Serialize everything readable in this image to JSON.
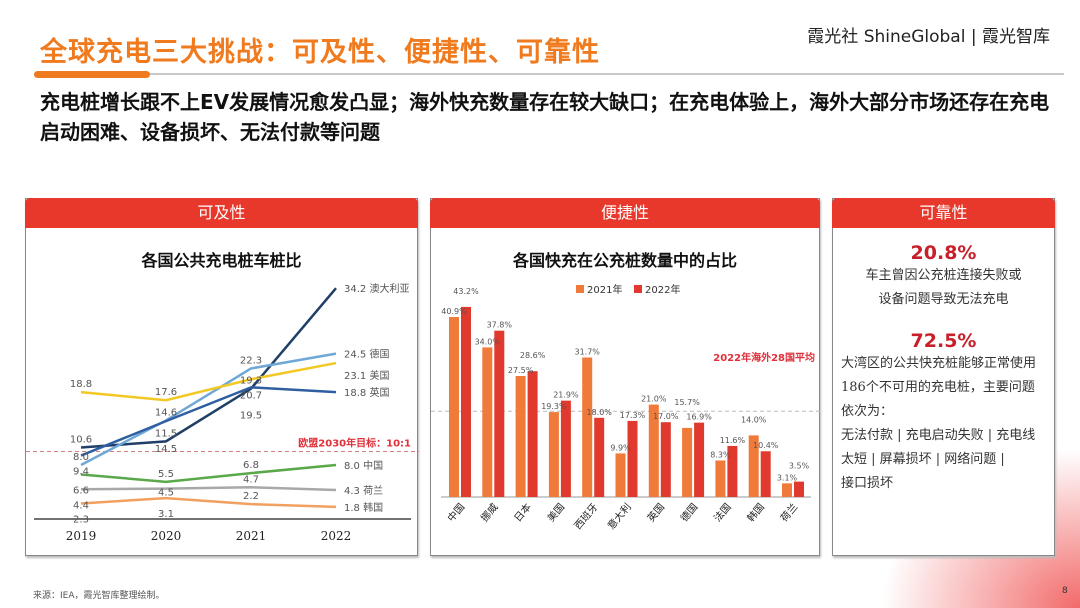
{
  "header": {
    "title": "全球充电三大挑战：可及性、便捷性、可靠性",
    "brand": "霞光社 ShineGlobal | 霞光智库",
    "subtitle": "充电桩增长跟不上EV发展情况愈发凸显；海外快充数量存在较大缺口；在充电体验上，海外大部分市场还存在充电启动困难、设备损坏、无法付款等问题"
  },
  "colors": {
    "accent": "#f07a1e",
    "red": "#e8382b"
  },
  "panels": {
    "left": "可及性",
    "middle": "便捷性",
    "right": "可靠性"
  },
  "chart_data": [
    {
      "type": "line",
      "title": "各国公共充电桩车桩比",
      "x": [
        "2019",
        "2020",
        "2021",
        "2022"
      ],
      "series": [
        {
          "name": "澳大利亚",
          "color": "#1f3f66",
          "values": [
            10.6,
            11.5,
            19.3,
            34.2
          ]
        },
        {
          "name": "德国",
          "color": "#6fa8d6",
          "values": [
            8.0,
            14.6,
            22.3,
            24.5
          ]
        },
        {
          "name": "美国",
          "color": "#f2c824",
          "values": [
            18.8,
            17.6,
            20.7,
            23.1
          ]
        },
        {
          "name": "英国",
          "color": "#2f5fa0",
          "values": [
            9.4,
            14.5,
            19.5,
            18.8
          ]
        },
        {
          "name": "中国",
          "color": "#5aa84a",
          "values": [
            6.6,
            5.5,
            6.8,
            8.0
          ]
        },
        {
          "name": "荷兰",
          "color": "#a8a8a8",
          "values": [
            4.4,
            4.5,
            4.7,
            4.3
          ]
        },
        {
          "name": "韩国",
          "color": "#f0a060",
          "values": [
            2.3,
            3.1,
            2.2,
            1.8
          ]
        }
      ],
      "reference": {
        "value": 10,
        "label": "欧盟2030年目标：10:1",
        "color": "#e0303a"
      }
    },
    {
      "type": "bar",
      "title": "各国快充在公充桩数量中的占比",
      "categories": [
        "中国",
        "挪威",
        "日本",
        "美国",
        "西班牙",
        "意大利",
        "英国",
        "德国",
        "法国",
        "韩国",
        "荷兰"
      ],
      "series": [
        {
          "name": "2021年",
          "color": "#f07a3a",
          "values": [
            40.9,
            34.0,
            27.5,
            19.3,
            31.7,
            9.9,
            21.0,
            15.7,
            8.3,
            14.0,
            3.1
          ]
        },
        {
          "name": "2022年",
          "color": "#e03a2e",
          "values": [
            43.2,
            37.8,
            28.6,
            21.9,
            18.0,
            17.3,
            17.0,
            16.9,
            11.6,
            10.4,
            3.5
          ]
        }
      ],
      "unit": "%",
      "legend": "top",
      "reference": {
        "value": 19.5,
        "label": "2022年海外28国平均",
        "color": "#e0303a"
      }
    }
  ],
  "reliability": {
    "stat1": "20.8%",
    "text1a": "车主曾因公充桩连接失败或",
    "text1b": "设备问题导致无法充电",
    "stat2": "72.5%",
    "text2": [
      "大湾区的公共快充桩能够正常使用",
      "186个不可用的充电桩，主要问题",
      "依次为：",
      "无法付款 | 充电启动失败 | 充电线",
      "太短 | 屏幕损坏 | 网络问题 |",
      "接口损坏"
    ]
  },
  "footer": {
    "source": "来源：IEA，霞光智库整理绘制。",
    "page": "8"
  }
}
